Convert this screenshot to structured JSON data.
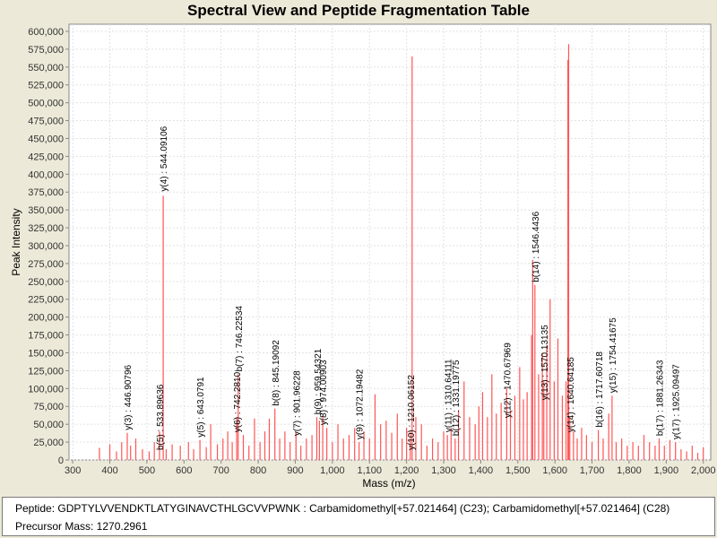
{
  "chart_data": {
    "type": "bar",
    "title": "Spectral View and Peptide Fragmentation Table",
    "xlabel": "Mass (m/z)",
    "ylabel": "Peak Intensity",
    "xlim": [
      290,
      2020
    ],
    "ylim": [
      0,
      610000
    ],
    "grid": true,
    "legend": "none",
    "bar_color": "#ff5555",
    "x_ticks": [
      300,
      400,
      500,
      600,
      700,
      800,
      900,
      1000,
      1100,
      1200,
      1300,
      1400,
      1500,
      1600,
      1700,
      1800,
      1900,
      2000
    ],
    "x_tick_labels": [
      "300",
      "400",
      "500",
      "600",
      "700",
      "800",
      "900",
      "1,000",
      "1,100",
      "1,200",
      "1,300",
      "1,400",
      "1,500",
      "1,600",
      "1,700",
      "1,800",
      "1,900",
      "2,000"
    ],
    "y_ticks": [
      0,
      25000,
      50000,
      75000,
      100000,
      125000,
      150000,
      175000,
      200000,
      225000,
      250000,
      275000,
      300000,
      325000,
      350000,
      375000,
      400000,
      425000,
      450000,
      475000,
      500000,
      525000,
      550000,
      575000,
      600000
    ],
    "y_tick_labels": [
      "0",
      "25,000",
      "50,000",
      "75,000",
      "100,000",
      "125,000",
      "150,000",
      "175,000",
      "200,000",
      "225,000",
      "250,000",
      "275,000",
      "300,000",
      "325,000",
      "350,000",
      "375,000",
      "400,000",
      "425,000",
      "450,000",
      "475,000",
      "500,000",
      "525,000",
      "550,000",
      "575,000",
      "600,000"
    ],
    "peaks": [
      {
        "mz": 372,
        "intensity": 17000
      },
      {
        "mz": 400,
        "intensity": 22000
      },
      {
        "mz": 418,
        "intensity": 12000
      },
      {
        "mz": 432,
        "intensity": 25000
      },
      {
        "mz": 447,
        "intensity": 38000
      },
      {
        "mz": 456,
        "intensity": 20000
      },
      {
        "mz": 470,
        "intensity": 30000
      },
      {
        "mz": 488,
        "intensity": 15000
      },
      {
        "mz": 506,
        "intensity": 12000
      },
      {
        "mz": 520,
        "intensity": 25000
      },
      {
        "mz": 534,
        "intensity": 40000
      },
      {
        "mz": 544,
        "intensity": 370000
      },
      {
        "mz": 552,
        "intensity": 15000
      },
      {
        "mz": 568,
        "intensity": 22000
      },
      {
        "mz": 590,
        "intensity": 20000
      },
      {
        "mz": 612,
        "intensity": 25000
      },
      {
        "mz": 626,
        "intensity": 15000
      },
      {
        "mz": 643,
        "intensity": 28000
      },
      {
        "mz": 660,
        "intensity": 18000
      },
      {
        "mz": 672,
        "intensity": 50000
      },
      {
        "mz": 690,
        "intensity": 22000
      },
      {
        "mz": 705,
        "intensity": 30000
      },
      {
        "mz": 718,
        "intensity": 40000
      },
      {
        "mz": 730,
        "intensity": 25000
      },
      {
        "mz": 742,
        "intensity": 60000
      },
      {
        "mz": 746,
        "intensity": 120000
      },
      {
        "mz": 760,
        "intensity": 35000
      },
      {
        "mz": 775,
        "intensity": 20000
      },
      {
        "mz": 790,
        "intensity": 58000
      },
      {
        "mz": 805,
        "intensity": 25000
      },
      {
        "mz": 818,
        "intensity": 40000
      },
      {
        "mz": 830,
        "intensity": 58000
      },
      {
        "mz": 845,
        "intensity": 72000
      },
      {
        "mz": 858,
        "intensity": 30000
      },
      {
        "mz": 872,
        "intensity": 40000
      },
      {
        "mz": 886,
        "intensity": 25000
      },
      {
        "mz": 902,
        "intensity": 38000
      },
      {
        "mz": 915,
        "intensity": 20000
      },
      {
        "mz": 930,
        "intensity": 30000
      },
      {
        "mz": 945,
        "intensity": 35000
      },
      {
        "mz": 958,
        "intensity": 60000
      },
      {
        "mz": 965,
        "intensity": 55000
      },
      {
        "mz": 974,
        "intensity": 62000
      },
      {
        "mz": 985,
        "intensity": 45000
      },
      {
        "mz": 1000,
        "intensity": 25000
      },
      {
        "mz": 1015,
        "intensity": 50000
      },
      {
        "mz": 1030,
        "intensity": 30000
      },
      {
        "mz": 1045,
        "intensity": 35000
      },
      {
        "mz": 1060,
        "intensity": 45000
      },
      {
        "mz": 1072,
        "intensity": 25000
      },
      {
        "mz": 1085,
        "intensity": 40000
      },
      {
        "mz": 1100,
        "intensity": 30000
      },
      {
        "mz": 1115,
        "intensity": 92000
      },
      {
        "mz": 1130,
        "intensity": 50000
      },
      {
        "mz": 1145,
        "intensity": 55000
      },
      {
        "mz": 1160,
        "intensity": 38000
      },
      {
        "mz": 1175,
        "intensity": 65000
      },
      {
        "mz": 1188,
        "intensity": 30000
      },
      {
        "mz": 1200,
        "intensity": 45000
      },
      {
        "mz": 1210,
        "intensity": 40000
      },
      {
        "mz": 1215,
        "intensity": 565000
      },
      {
        "mz": 1225,
        "intensity": 60000
      },
      {
        "mz": 1240,
        "intensity": 50000
      },
      {
        "mz": 1255,
        "intensity": 20000
      },
      {
        "mz": 1270,
        "intensity": 30000
      },
      {
        "mz": 1285,
        "intensity": 25000
      },
      {
        "mz": 1300,
        "intensity": 40000
      },
      {
        "mz": 1310,
        "intensity": 35000
      },
      {
        "mz": 1320,
        "intensity": 45000
      },
      {
        "mz": 1331,
        "intensity": 30000
      },
      {
        "mz": 1340,
        "intensity": 70000
      },
      {
        "mz": 1355,
        "intensity": 110000
      },
      {
        "mz": 1370,
        "intensity": 60000
      },
      {
        "mz": 1385,
        "intensity": 50000
      },
      {
        "mz": 1395,
        "intensity": 75000
      },
      {
        "mz": 1405,
        "intensity": 95000
      },
      {
        "mz": 1418,
        "intensity": 60000
      },
      {
        "mz": 1430,
        "intensity": 120000
      },
      {
        "mz": 1442,
        "intensity": 65000
      },
      {
        "mz": 1455,
        "intensity": 80000
      },
      {
        "mz": 1470,
        "intensity": 100000
      },
      {
        "mz": 1480,
        "intensity": 70000
      },
      {
        "mz": 1492,
        "intensity": 90000
      },
      {
        "mz": 1505,
        "intensity": 130000
      },
      {
        "mz": 1515,
        "intensity": 85000
      },
      {
        "mz": 1525,
        "intensity": 95000
      },
      {
        "mz": 1537,
        "intensity": 175000
      },
      {
        "mz": 1540,
        "intensity": 280000
      },
      {
        "mz": 1546,
        "intensity": 245000
      },
      {
        "mz": 1556,
        "intensity": 120000
      },
      {
        "mz": 1566,
        "intensity": 150000
      },
      {
        "mz": 1570,
        "intensity": 110000
      },
      {
        "mz": 1578,
        "intensity": 160000
      },
      {
        "mz": 1587,
        "intensity": 225000
      },
      {
        "mz": 1598,
        "intensity": 110000
      },
      {
        "mz": 1608,
        "intensity": 170000
      },
      {
        "mz": 1620,
        "intensity": 90000
      },
      {
        "mz": 1630,
        "intensity": 110000
      },
      {
        "mz": 1635,
        "intensity": 560000
      },
      {
        "mz": 1637,
        "intensity": 582000
      },
      {
        "mz": 1640,
        "intensity": 60000
      },
      {
        "mz": 1650,
        "intensity": 40000
      },
      {
        "mz": 1660,
        "intensity": 30000
      },
      {
        "mz": 1672,
        "intensity": 45000
      },
      {
        "mz": 1685,
        "intensity": 35000
      },
      {
        "mz": 1700,
        "intensity": 25000
      },
      {
        "mz": 1717,
        "intensity": 42000
      },
      {
        "mz": 1730,
        "intensity": 30000
      },
      {
        "mz": 1745,
        "intensity": 65000
      },
      {
        "mz": 1754,
        "intensity": 90000
      },
      {
        "mz": 1765,
        "intensity": 25000
      },
      {
        "mz": 1780,
        "intensity": 30000
      },
      {
        "mz": 1795,
        "intensity": 20000
      },
      {
        "mz": 1810,
        "intensity": 25000
      },
      {
        "mz": 1825,
        "intensity": 20000
      },
      {
        "mz": 1840,
        "intensity": 35000
      },
      {
        "mz": 1855,
        "intensity": 25000
      },
      {
        "mz": 1870,
        "intensity": 20000
      },
      {
        "mz": 1881,
        "intensity": 30000
      },
      {
        "mz": 1895,
        "intensity": 20000
      },
      {
        "mz": 1910,
        "intensity": 28000
      },
      {
        "mz": 1925,
        "intensity": 25000
      },
      {
        "mz": 1940,
        "intensity": 15000
      },
      {
        "mz": 1955,
        "intensity": 12000
      },
      {
        "mz": 1970,
        "intensity": 20000
      },
      {
        "mz": 1985,
        "intensity": 10000
      },
      {
        "mz": 2000,
        "intensity": 18000
      }
    ],
    "annotations": [
      {
        "label": "y(3) : 446.90796",
        "mz": 446.90796,
        "intensity": 38000
      },
      {
        "label": "b(5) : 533.89636",
        "mz": 533.89636,
        "intensity": 10000
      },
      {
        "label": "y(4) : 544.09106",
        "mz": 544.09106,
        "intensity": 372000
      },
      {
        "label": "y(5) : 643.0791",
        "mz": 643.0791,
        "intensity": 28000
      },
      {
        "label": "y(6) : 742.2810",
        "mz": 742.281,
        "intensity": 35000
      },
      {
        "label": "b(7) : 746.22534",
        "mz": 746.22534,
        "intensity": 120000
      },
      {
        "label": "b(8) : 845.19092",
        "mz": 845.19092,
        "intensity": 72000
      },
      {
        "label": "y(7) : 901.96228",
        "mz": 901.96228,
        "intensity": 30000
      },
      {
        "label": "b(9) : 959.54321",
        "mz": 959.54321,
        "intensity": 60000
      },
      {
        "label": "y(8) : 974.00903",
        "mz": 974.00903,
        "intensity": 45000
      },
      {
        "label": "y(9) : 1072.19482",
        "mz": 1072.19482,
        "intensity": 25000
      },
      {
        "label": "y(10) : 1210.06152",
        "mz": 1210.06152,
        "intensity": 10000
      },
      {
        "label": "y(11) : 1310.64111",
        "mz": 1310.64111,
        "intensity": 35000
      },
      {
        "label": "b(12) : 1331.19775",
        "mz": 1331.19775,
        "intensity": 30000
      },
      {
        "label": "y(12) : 1470.67969",
        "mz": 1470.67969,
        "intensity": 55000
      },
      {
        "label": "b(14) : 1546.4436",
        "mz": 1546.4436,
        "intensity": 245000
      },
      {
        "label": "y(13) : 1570.13135",
        "mz": 1570.13135,
        "intensity": 80000
      },
      {
        "label": "y(14) : 1640.64185",
        "mz": 1640.64185,
        "intensity": 35000
      },
      {
        "label": "b(16) : 1717.60718",
        "mz": 1717.60718,
        "intensity": 42000
      },
      {
        "label": "y(15) : 1754.41675",
        "mz": 1754.41675,
        "intensity": 90000
      },
      {
        "label": "b(17) : 1881.26343",
        "mz": 1881.26343,
        "intensity": 30000
      },
      {
        "label": "y(17) : 1925.09497",
        "mz": 1925.09497,
        "intensity": 25000
      }
    ]
  },
  "info": {
    "peptide": "Peptide: GDPTYLVVENDKTLATYGINAVCTHLGCVVPWNK : Carbamidomethyl[+57.021464] (C23); Carbamidomethyl[+57.021464] (C28)",
    "precursor": "Precursor Mass: 1270.2961"
  }
}
